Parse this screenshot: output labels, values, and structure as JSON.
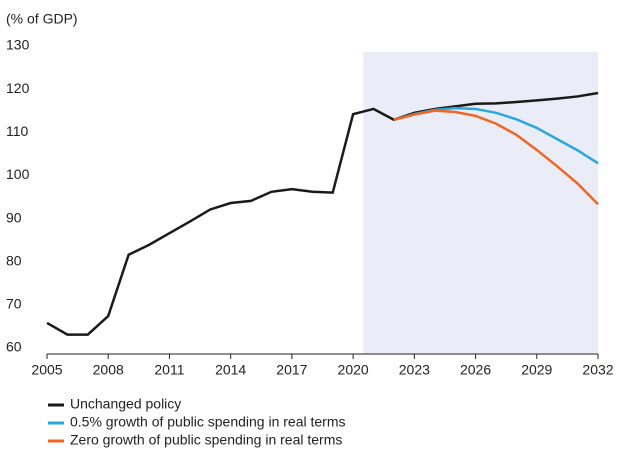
{
  "chart_data": {
    "type": "line",
    "subtitle": "(% of GDP)",
    "x": [
      2005,
      2006,
      2007,
      2008,
      2009,
      2010,
      2011,
      2012,
      2013,
      2014,
      2015,
      2016,
      2017,
      2018,
      2019,
      2020,
      2021,
      2022,
      2023,
      2024,
      2025,
      2026,
      2027,
      2028,
      2029,
      2030,
      2031,
      2032
    ],
    "series": [
      {
        "name": "Unchanged policy",
        "color": "#1a1a1a",
        "values": [
          67.2,
          64.5,
          64.5,
          68.8,
          83,
          85.3,
          88,
          90.7,
          93.5,
          95,
          95.5,
          97.6,
          98.2,
          97.6,
          97.4,
          115.6,
          116.8,
          114.3,
          115.9,
          116.8,
          117.4,
          118,
          118.1,
          118.4,
          118.8,
          119.2,
          119.7,
          120.5
        ]
      },
      {
        "name": "0.5% growth of public spending in real terms",
        "color": "#2aa7de",
        "values": [
          null,
          null,
          null,
          null,
          null,
          null,
          null,
          null,
          null,
          null,
          null,
          null,
          null,
          null,
          null,
          null,
          null,
          114.3,
          115.6,
          116.6,
          117.0,
          116.8,
          115.9,
          114.4,
          112.4,
          109.8,
          107.2,
          104.2
        ]
      },
      {
        "name": "Zero growth of public spending in real terms",
        "color": "#f26522",
        "values": [
          null,
          null,
          null,
          null,
          null,
          null,
          null,
          null,
          null,
          null,
          null,
          null,
          null,
          null,
          null,
          null,
          null,
          114.3,
          115.5,
          116.4,
          116.1,
          115.2,
          113.4,
          110.8,
          107.3,
          103.5,
          99.5,
          94.7
        ]
      }
    ],
    "xlim": [
      2005,
      2032
    ],
    "xticks": [
      2005,
      2008,
      2011,
      2014,
      2017,
      2020,
      2023,
      2026,
      2029,
      2032
    ],
    "ylim": [
      60,
      130
    ],
    "yticks": [
      60,
      70,
      80,
      90,
      100,
      110,
      120,
      130
    ],
    "shaded_x": [
      2020.5,
      2032
    ],
    "shade_color": "#eaedf7",
    "legend": "bottom-left"
  }
}
